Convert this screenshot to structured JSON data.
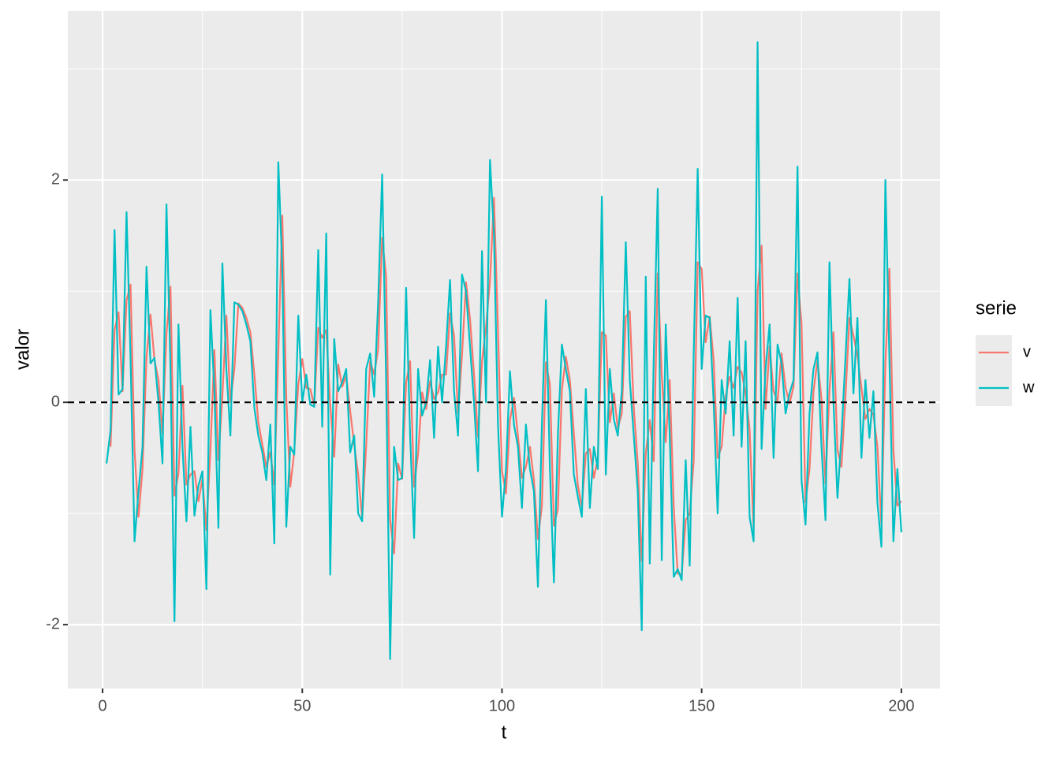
{
  "chart_data": {
    "type": "line",
    "x_label": "t",
    "y_label": "valor",
    "legend_title": "serie",
    "legend_position": "right",
    "xlim": [
      -8.7,
      209.7
    ],
    "ylim": [
      -2.574,
      3.52
    ],
    "xticks": [
      0,
      50,
      100,
      150,
      200
    ],
    "yticks": [
      -2,
      0,
      2
    ],
    "x_minor_ticks": [
      25,
      75,
      125,
      175
    ],
    "y_minor_ticks": [
      -1,
      1,
      3
    ],
    "hline": 0,
    "grid": true,
    "x": [
      1,
      2,
      3,
      4,
      5,
      6,
      7,
      8,
      9,
      10,
      11,
      12,
      13,
      14,
      15,
      16,
      17,
      18,
      19,
      20,
      21,
      22,
      23,
      24,
      25,
      26,
      27,
      28,
      29,
      30,
      31,
      32,
      33,
      34,
      35,
      36,
      37,
      38,
      39,
      40,
      41,
      42,
      43,
      44,
      45,
      46,
      47,
      48,
      49,
      50,
      51,
      52,
      53,
      54,
      55,
      56,
      57,
      58,
      59,
      60,
      61,
      62,
      63,
      64,
      65,
      66,
      67,
      68,
      69,
      70,
      71,
      72,
      73,
      74,
      75,
      76,
      77,
      78,
      79,
      80,
      81,
      82,
      83,
      84,
      85,
      86,
      87,
      88,
      89,
      90,
      91,
      92,
      93,
      94,
      95,
      96,
      97,
      98,
      99,
      100,
      101,
      102,
      103,
      104,
      105,
      106,
      107,
      108,
      109,
      110,
      111,
      112,
      113,
      114,
      115,
      116,
      117,
      118,
      119,
      120,
      121,
      122,
      123,
      124,
      125,
      126,
      127,
      128,
      129,
      130,
      131,
      132,
      133,
      134,
      135,
      136,
      137,
      138,
      139,
      140,
      141,
      142,
      143,
      144,
      145,
      146,
      147,
      148,
      149,
      150,
      151,
      152,
      153,
      154,
      155,
      156,
      157,
      158,
      159,
      160,
      161,
      162,
      163,
      164,
      165,
      166,
      167,
      168,
      169,
      170,
      171,
      172,
      173,
      174,
      175,
      176,
      177,
      178,
      179,
      180,
      181,
      182,
      183,
      184,
      185,
      186,
      187,
      188,
      189,
      190,
      191,
      192,
      193,
      194,
      195,
      196,
      197,
      198,
      199,
      200
    ],
    "series": [
      {
        "name": "v",
        "color": "#F8766D",
        "values": [
          null,
          -0.4,
          0.65,
          0.81,
          0.1,
          0.92,
          1.06,
          -0.43,
          -1.03,
          -0.6,
          0.41,
          0.79,
          0.38,
          0.2,
          -0.28,
          0.62,
          1.04,
          -0.84,
          -0.64,
          0.15,
          -0.74,
          -0.65,
          -0.62,
          -0.89,
          -0.69,
          -1.15,
          -0.43,
          0.47,
          -0.52,
          0.06,
          0.78,
          0.0,
          0.3,
          0.89,
          0.85,
          0.76,
          0.63,
          0.25,
          -0.18,
          -0.38,
          -0.58,
          -0.45,
          -0.74,
          0.45,
          1.68,
          0.04,
          -0.76,
          -0.44,
          0.16,
          0.39,
          0.13,
          0.12,
          -0.03,
          0.67,
          0.58,
          0.65,
          -0.02,
          -0.49,
          0.34,
          0.14,
          0.24,
          -0.08,
          -0.38,
          -0.65,
          -1.04,
          -0.39,
          0.37,
          0.25,
          0.48,
          1.48,
          1.13,
          -1.06,
          -1.36,
          -0.55,
          -0.69,
          0.18,
          0.37,
          -0.76,
          -0.46,
          0.09,
          -0.06,
          0.19,
          0.03,
          0.09,
          0.25,
          0.25,
          0.8,
          0.6,
          -0.1,
          0.43,
          1.08,
          0.75,
          0.25,
          -0.31,
          0.37,
          0.68,
          1.09,
          1.84,
          0.65,
          -0.62,
          -0.82,
          -0.16,
          0.04,
          -0.3,
          -0.68,
          -0.58,
          -0.4,
          -0.7,
          -1.23,
          -0.93,
          0.36,
          0.16,
          -1.11,
          -0.96,
          0.11,
          0.41,
          0.2,
          -0.28,
          -0.75,
          -0.94,
          -0.46,
          -0.42,
          -0.68,
          -0.5,
          0.63,
          0.6,
          -0.18,
          0.08,
          -0.23,
          -0.1,
          0.77,
          0.82,
          -0.05,
          -0.55,
          -1.43,
          -0.46,
          -0.16,
          -0.53,
          1.16,
          0.25,
          -0.36,
          0.2,
          -0.94,
          -1.54,
          -1.55,
          -1.06,
          -1.0,
          -0.53,
          1.26,
          1.2,
          0.54,
          0.77,
          0.38,
          -0.5,
          -0.4,
          0.05,
          0.23,
          0.13,
          0.32,
          0.27,
          0.08,
          -0.24,
          -1.14,
          1.0,
          1.41,
          -0.06,
          0.5,
          0.1,
          0.01,
          0.44,
          0.13,
          -0.01,
          0.14,
          1.16,
          0.71,
          -0.9,
          -0.6,
          0.1,
          0.38,
          0.03,
          -0.73,
          0.1,
          0.63,
          -0.43,
          -0.58,
          0.05,
          0.76,
          0.6,
          0.42,
          0.13,
          -0.15,
          -0.06,
          -0.11,
          -0.4,
          -1.1,
          0.35,
          1.2,
          -0.43,
          -0.93,
          -0.89
        ]
      },
      {
        "name": "w",
        "color": "#00BFC4",
        "values": [
          -0.55,
          -0.25,
          1.55,
          0.07,
          0.12,
          1.71,
          0.4,
          -1.25,
          -0.8,
          -0.4,
          1.22,
          0.35,
          0.4,
          0.0,
          -0.55,
          1.78,
          0.3,
          -1.97,
          0.7,
          -0.4,
          -1.07,
          -0.22,
          -1.02,
          -0.75,
          -0.62,
          -1.68,
          0.83,
          0.1,
          -1.13,
          1.25,
          0.3,
          -0.3,
          0.9,
          0.88,
          0.82,
          0.7,
          0.55,
          -0.05,
          -0.3,
          -0.45,
          -0.7,
          -0.2,
          -1.27,
          2.16,
          1.2,
          -1.12,
          -0.4,
          -0.47,
          0.78,
          0.0,
          0.25,
          -0.02,
          -0.04,
          1.37,
          -0.22,
          1.52,
          -1.55,
          0.57,
          0.1,
          0.18,
          0.3,
          -0.45,
          -0.3,
          -1.0,
          -1.07,
          0.3,
          0.44,
          0.05,
          0.9,
          2.05,
          0.2,
          -2.31,
          -0.4,
          -0.7,
          -0.68,
          1.03,
          -0.3,
          -1.22,
          0.3,
          -0.12,
          0.0,
          0.38,
          -0.32,
          0.5,
          0.0,
          0.5,
          1.1,
          0.1,
          -0.3,
          1.15,
          1.0,
          0.5,
          0.0,
          -0.62,
          1.36,
          0.0,
          2.18,
          1.5,
          -0.2,
          -1.03,
          -0.6,
          0.28,
          -0.2,
          -0.4,
          -0.95,
          -0.2,
          -0.6,
          -0.8,
          -1.66,
          -0.2,
          0.92,
          -0.6,
          -1.62,
          -0.3,
          0.52,
          0.3,
          0.1,
          -0.65,
          -0.85,
          -1.03,
          0.12,
          -0.95,
          -0.4,
          -0.6,
          1.85,
          -0.65,
          0.3,
          -0.15,
          -0.3,
          0.1,
          1.44,
          0.2,
          -0.3,
          -0.8,
          -2.05,
          1.13,
          -1.45,
          0.4,
          1.92,
          -1.42,
          0.7,
          -0.3,
          -1.57,
          -1.5,
          -1.6,
          -0.52,
          -1.47,
          0.42,
          2.1,
          0.3,
          0.78,
          0.76,
          0.0,
          -1.0,
          0.2,
          -0.1,
          0.55,
          -0.3,
          0.94,
          -0.4,
          0.55,
          -1.03,
          -1.25,
          3.24,
          -0.42,
          0.3,
          0.7,
          -0.5,
          0.52,
          0.35,
          -0.1,
          0.08,
          0.2,
          2.12,
          -0.7,
          -1.1,
          -0.1,
          0.3,
          0.45,
          -0.4,
          -1.06,
          1.26,
          0.0,
          -0.86,
          -0.3,
          0.4,
          1.11,
          0.08,
          0.76,
          -0.5,
          0.2,
          -0.32,
          0.1,
          -0.9,
          -1.3,
          2.0,
          0.4,
          -1.25,
          -0.6,
          -1.17
        ]
      }
    ]
  }
}
